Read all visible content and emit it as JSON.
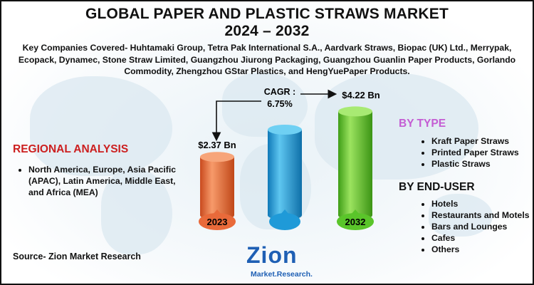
{
  "title_line1": "GLOBAL PAPER AND PLASTIC STRAWS MARKET",
  "title_line2": "2024 – 2032",
  "companies": "Key Companies Covered- Huhtamaki Group, Tetra Pak International S.A., Aardvark Straws, Biopac (UK) Ltd., Merrypak, Ecopack, Dynamec, Stone Straw Limited, Guangzhou Jiurong Packaging, Guangzhou Guanlin Paper Products, Gorlando Commodity, Zhengzhou GStar Plastics, and HengYuePaper Products.",
  "regional": {
    "heading": "REGIONAL ANALYSIS",
    "items": [
      "North America, Europe, Asia Pacific (APAC), Latin America, Middle East, and Africa (MEA)"
    ]
  },
  "by_type": {
    "heading": "BY TYPE",
    "items": [
      "Kraft Paper Straws",
      "Printed Paper Straws",
      "Plastic Straws"
    ]
  },
  "by_end_user": {
    "heading": "BY END-USER",
    "items": [
      "Hotels",
      "Restaurants and Motels",
      "Bars and Lounges",
      "Cafes",
      "Others"
    ]
  },
  "source": "Source- Zion Market Research",
  "logo": {
    "name": "Zion",
    "sub": "Market.Research."
  },
  "colors": {
    "regional_heading": "#cc1f1f",
    "by_type_heading": "#c45dd3",
    "bar_2023": "#e96a3a",
    "bar_mid": "#1f9ad8",
    "bar_2032": "#5ac52a",
    "logo": "#1e5fb4"
  },
  "chart_data": {
    "type": "bar",
    "categories": [
      "2023",
      "",
      "2032"
    ],
    "values": [
      2.37,
      null,
      4.22
    ],
    "value_labels": [
      "$2.37 Bn",
      "",
      "$4.22 Bn"
    ],
    "annotation_label": "CAGR :",
    "annotation_value": "6.75%",
    "unit": "USD Billion"
  }
}
